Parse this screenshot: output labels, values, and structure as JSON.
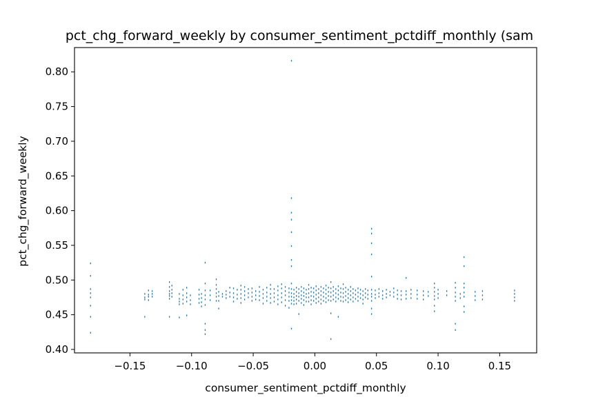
{
  "colors": {
    "marker": "#1f77b4",
    "axes": "#000000",
    "background": "#ffffff"
  },
  "chart_data": {
    "type": "scatter",
    "title": "pct_chg_forward_weekly by consumer_sentiment_pctdiff_monthly (sam",
    "xlabel": "consumer_sentiment_pctdiff_monthly",
    "ylabel": "pct_chg_forward_weekly",
    "xlim": [
      -0.195,
      0.18
    ],
    "ylim": [
      0.395,
      0.835
    ],
    "xticks": [
      -0.15,
      -0.1,
      -0.05,
      0.0,
      0.05,
      0.1,
      0.15
    ],
    "xtick_labels": [
      "−0.15",
      "−0.10",
      "−0.05",
      "0.00",
      "0.05",
      "0.10",
      "0.15"
    ],
    "yticks": [
      0.4,
      0.45,
      0.5,
      0.55,
      0.6,
      0.65,
      0.7,
      0.75,
      0.8
    ],
    "ytick_labels": [
      "0.40",
      "0.45",
      "0.50",
      "0.55",
      "0.60",
      "0.65",
      "0.70",
      "0.75",
      "0.80"
    ],
    "marker": "pixel",
    "series": [
      {
        "name": "pct_chg_forward_weekly",
        "columns": [
          {
            "x": -0.182,
            "y": [
              0.524,
              0.506,
              0.487,
              0.481,
              0.475,
              0.463,
              0.447,
              0.424
            ]
          },
          {
            "x": -0.138,
            "y": [
              0.48,
              0.475,
              0.472,
              0.447
            ]
          },
          {
            "x": -0.135,
            "y": [
              0.485,
              0.479,
              0.476,
              0.471
            ]
          },
          {
            "x": -0.132,
            "y": [
              0.484,
              0.48,
              0.476
            ]
          },
          {
            "x": -0.118,
            "y": [
              0.497,
              0.49,
              0.484,
              0.48,
              0.477,
              0.473,
              0.447
            ]
          },
          {
            "x": -0.116,
            "y": [
              0.492,
              0.486,
              0.481,
              0.476
            ]
          },
          {
            "x": -0.11,
            "y": [
              0.48,
              0.473,
              0.469,
              0.465,
              0.446
            ]
          },
          {
            "x": -0.107,
            "y": [
              0.486,
              0.478,
              0.472,
              0.466
            ]
          },
          {
            "x": -0.104,
            "y": [
              0.489,
              0.481,
              0.475,
              0.469,
              0.449
            ]
          },
          {
            "x": -0.101,
            "y": [
              0.478,
              0.471,
              0.465
            ]
          },
          {
            "x": -0.094,
            "y": [
              0.486,
              0.479,
              0.473,
              0.467
            ]
          },
          {
            "x": -0.092,
            "y": [
              0.48,
              0.474,
              0.468,
              0.462
            ]
          },
          {
            "x": -0.089,
            "y": [
              0.525,
              0.495,
              0.485,
              0.478,
              0.472,
              0.464,
              0.437,
              0.428,
              0.422
            ]
          },
          {
            "x": -0.085,
            "y": [
              0.485,
              0.478,
              0.471
            ]
          },
          {
            "x": -0.08,
            "y": [
              0.501,
              0.493,
              0.487,
              0.481,
              0.476,
              0.47
            ]
          },
          {
            "x": -0.078,
            "y": [
              0.483,
              0.477,
              0.47,
              0.459
            ]
          },
          {
            "x": -0.075,
            "y": [
              0.48,
              0.476
            ]
          },
          {
            "x": -0.072,
            "y": [
              0.484,
              0.479,
              0.474
            ]
          },
          {
            "x": -0.069,
            "y": [
              0.489,
              0.482,
              0.476
            ]
          },
          {
            "x": -0.066,
            "y": [
              0.488,
              0.481,
              0.475,
              0.469
            ]
          },
          {
            "x": -0.063,
            "y": [
              0.486,
              0.479,
              0.473
            ]
          },
          {
            "x": -0.06,
            "y": [
              0.492,
              0.486,
              0.48,
              0.474,
              0.467
            ]
          },
          {
            "x": -0.057,
            "y": [
              0.49,
              0.484,
              0.478,
              0.472
            ]
          },
          {
            "x": -0.054,
            "y": [
              0.487,
              0.481,
              0.475
            ]
          },
          {
            "x": -0.051,
            "y": [
              0.488,
              0.482,
              0.476,
              0.47
            ]
          },
          {
            "x": -0.048,
            "y": [
              0.484,
              0.478,
              0.472
            ]
          },
          {
            "x": -0.045,
            "y": [
              0.49,
              0.483,
              0.477,
              0.471
            ]
          },
          {
            "x": -0.042,
            "y": [
              0.486,
              0.48,
              0.474,
              0.466
            ]
          },
          {
            "x": -0.039,
            "y": [
              0.489,
              0.482,
              0.476,
              0.47
            ]
          },
          {
            "x": -0.036,
            "y": [
              0.493,
              0.487,
              0.48,
              0.474,
              0.467
            ]
          },
          {
            "x": -0.033,
            "y": [
              0.487,
              0.481,
              0.475,
              0.469
            ]
          },
          {
            "x": -0.03,
            "y": [
              0.491,
              0.485,
              0.478,
              0.472,
              0.465
            ]
          },
          {
            "x": -0.027,
            "y": [
              0.494,
              0.488,
              0.481,
              0.475,
              0.468
            ]
          },
          {
            "x": -0.024,
            "y": [
              0.49,
              0.484,
              0.478,
              0.471,
              0.463
            ]
          },
          {
            "x": -0.021,
            "y": [
              0.488,
              0.482,
              0.476,
              0.47,
              0.46
            ]
          },
          {
            "x": -0.019,
            "y": [
              0.816,
              0.618,
              0.597,
              0.587,
              0.569,
              0.549,
              0.529,
              0.52,
              0.495,
              0.487,
              0.481,
              0.476,
              0.471,
              0.466,
              0.43
            ]
          },
          {
            "x": -0.017,
            "y": [
              0.486,
              0.48,
              0.475,
              0.47,
              0.465
            ]
          },
          {
            "x": -0.015,
            "y": [
              0.489,
              0.483,
              0.477,
              0.472,
              0.466
            ]
          },
          {
            "x": -0.013,
            "y": [
              0.487,
              0.481,
              0.476,
              0.47,
              0.451
            ]
          },
          {
            "x": -0.011,
            "y": [
              0.49,
              0.484,
              0.478,
              0.473,
              0.467
            ]
          },
          {
            "x": -0.009,
            "y": [
              0.488,
              0.482,
              0.477,
              0.471,
              0.464
            ]
          },
          {
            "x": -0.007,
            "y": [
              0.486,
              0.48,
              0.475,
              0.469
            ]
          },
          {
            "x": -0.005,
            "y": [
              0.493,
              0.487,
              0.481,
              0.475,
              0.469
            ]
          },
          {
            "x": -0.003,
            "y": [
              0.489,
              0.483,
              0.477,
              0.471,
              0.465
            ]
          },
          {
            "x": -0.001,
            "y": [
              0.488,
              0.482,
              0.476,
              0.47
            ]
          },
          {
            "x": 0.001,
            "y": [
              0.491,
              0.485,
              0.479,
              0.473,
              0.467
            ]
          },
          {
            "x": 0.003,
            "y": [
              0.487,
              0.481,
              0.475,
              0.469
            ]
          },
          {
            "x": 0.005,
            "y": [
              0.49,
              0.484,
              0.478,
              0.472,
              0.466
            ]
          },
          {
            "x": 0.007,
            "y": [
              0.488,
              0.482,
              0.476,
              0.47
            ]
          },
          {
            "x": 0.009,
            "y": [
              0.492,
              0.486,
              0.48,
              0.474,
              0.468
            ]
          },
          {
            "x": 0.011,
            "y": [
              0.489,
              0.483,
              0.477,
              0.471
            ]
          },
          {
            "x": 0.013,
            "y": [
              0.497,
              0.488,
              0.482,
              0.476,
              0.47,
              0.452,
              0.415
            ]
          },
          {
            "x": 0.015,
            "y": [
              0.49,
              0.484,
              0.478,
              0.472
            ]
          },
          {
            "x": 0.017,
            "y": [
              0.487,
              0.481,
              0.475,
              0.469
            ]
          },
          {
            "x": 0.019,
            "y": [
              0.491,
              0.485,
              0.479,
              0.473,
              0.447
            ]
          },
          {
            "x": 0.021,
            "y": [
              0.488,
              0.482,
              0.476,
              0.47
            ]
          },
          {
            "x": 0.023,
            "y": [
              0.494,
              0.487,
              0.481,
              0.475,
              0.469
            ]
          },
          {
            "x": 0.025,
            "y": [
              0.489,
              0.483,
              0.477,
              0.471
            ]
          },
          {
            "x": 0.027,
            "y": [
              0.486,
              0.48,
              0.474,
              0.468
            ]
          },
          {
            "x": 0.029,
            "y": [
              0.49,
              0.484,
              0.478,
              0.472
            ]
          },
          {
            "x": 0.031,
            "y": [
              0.487,
              0.481,
              0.475,
              0.469
            ]
          },
          {
            "x": 0.033,
            "y": [
              0.485,
              0.479,
              0.473
            ]
          },
          {
            "x": 0.035,
            "y": [
              0.488,
              0.482,
              0.476,
              0.47
            ]
          },
          {
            "x": 0.037,
            "y": [
              0.486,
              0.48,
              0.474
            ]
          },
          {
            "x": 0.039,
            "y": [
              0.484,
              0.478,
              0.472,
              0.466
            ]
          },
          {
            "x": 0.041,
            "y": [
              0.487,
              0.481,
              0.475
            ]
          },
          {
            "x": 0.043,
            "y": [
              0.485,
              0.479,
              0.473
            ]
          },
          {
            "x": 0.046,
            "y": [
              0.574,
              0.567,
              0.553,
              0.537,
              0.505,
              0.486,
              0.48,
              0.476,
              0.47,
              0.459,
              0.451
            ]
          },
          {
            "x": 0.049,
            "y": [
              0.485,
              0.479,
              0.474
            ]
          },
          {
            "x": 0.052,
            "y": [
              0.487,
              0.481,
              0.476
            ]
          },
          {
            "x": 0.055,
            "y": [
              0.484,
              0.478,
              0.473
            ]
          },
          {
            "x": 0.058,
            "y": [
              0.486,
              0.48,
              0.475
            ]
          },
          {
            "x": 0.061,
            "y": [
              0.483,
              0.478
            ]
          },
          {
            "x": 0.064,
            "y": [
              0.488,
              0.482,
              0.476
            ]
          },
          {
            "x": 0.067,
            "y": [
              0.485,
              0.479,
              0.473
            ]
          },
          {
            "x": 0.07,
            "y": [
              0.484,
              0.478,
              0.472
            ]
          },
          {
            "x": 0.074,
            "y": [
              0.503,
              0.484,
              0.479,
              0.473
            ]
          },
          {
            "x": 0.078,
            "y": [
              0.486,
              0.48,
              0.474
            ]
          },
          {
            "x": 0.083,
            "y": [
              0.485,
              0.479,
              0.473
            ]
          },
          {
            "x": 0.088,
            "y": [
              0.484,
              0.478,
              0.472
            ]
          },
          {
            "x": 0.092,
            "y": [
              0.483,
              0.477
            ]
          },
          {
            "x": 0.097,
            "y": [
              0.495,
              0.489,
              0.483,
              0.477,
              0.472,
              0.463,
              0.455
            ]
          },
          {
            "x": 0.1,
            "y": [
              0.486,
              0.48,
              0.474
            ]
          },
          {
            "x": 0.107,
            "y": [
              0.484,
              0.478
            ]
          },
          {
            "x": 0.114,
            "y": [
              0.496,
              0.489,
              0.482,
              0.476,
              0.47,
              0.437,
              0.428
            ]
          },
          {
            "x": 0.118,
            "y": [
              0.48,
              0.474
            ]
          },
          {
            "x": 0.121,
            "y": [
              0.533,
              0.52,
              0.495,
              0.489,
              0.482,
              0.476,
              0.462,
              0.454
            ]
          },
          {
            "x": 0.13,
            "y": [
              0.483,
              0.477,
              0.471
            ]
          },
          {
            "x": 0.136,
            "y": [
              0.484,
              0.478,
              0.472
            ]
          },
          {
            "x": 0.162,
            "y": [
              0.485,
              0.48,
              0.475,
              0.47
            ]
          }
        ]
      }
    ]
  }
}
